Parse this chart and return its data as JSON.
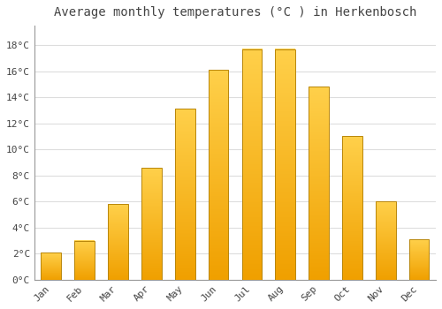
{
  "title": "Average monthly temperatures (°C ) in Herkenbosch",
  "months": [
    "Jan",
    "Feb",
    "Mar",
    "Apr",
    "May",
    "Jun",
    "Jul",
    "Aug",
    "Sep",
    "Oct",
    "Nov",
    "Dec"
  ],
  "values": [
    2.1,
    3.0,
    5.8,
    8.6,
    13.1,
    16.1,
    17.7,
    17.7,
    14.8,
    11.0,
    6.0,
    3.1
  ],
  "bar_color_light": "#FFD04A",
  "bar_color_dark": "#F0A000",
  "bar_edge_color": "#B8860B",
  "background_color": "#FFFFFF",
  "grid_color": "#DDDDDD",
  "text_color": "#444444",
  "ylim": [
    0,
    19.5
  ],
  "yticks": [
    0,
    2,
    4,
    6,
    8,
    10,
    12,
    14,
    16,
    18
  ],
  "title_fontsize": 10,
  "tick_fontsize": 8,
  "ylabel_suffix": "°C"
}
